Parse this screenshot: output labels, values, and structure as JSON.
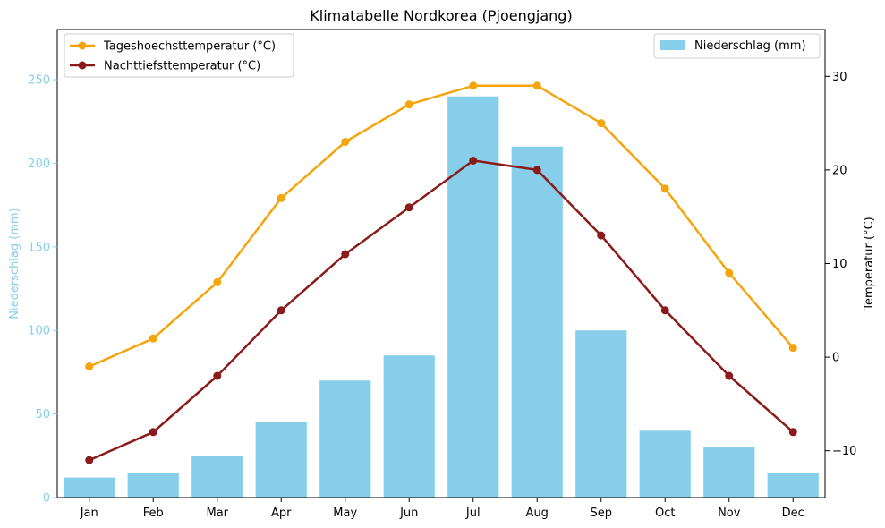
{
  "chart_data": {
    "type": "bar+line",
    "title": "Klimatabelle Nordkorea (Pjoengjang)",
    "categories": [
      "Jan",
      "Feb",
      "Mar",
      "Apr",
      "May",
      "Jun",
      "Jul",
      "Aug",
      "Sep",
      "Oct",
      "Nov",
      "Dec"
    ],
    "bar_series": {
      "name": "Niederschlag (mm)",
      "axis": "left",
      "color": "#87CEEB",
      "values": [
        12,
        15,
        25,
        45,
        70,
        85,
        240,
        210,
        100,
        40,
        30,
        15
      ]
    },
    "line_series": [
      {
        "name": "Tageshoechsttemperatur (°C)",
        "axis": "right",
        "color": "#F5A40C",
        "values": [
          -1,
          2,
          8,
          17,
          23,
          27,
          29,
          29,
          25,
          18,
          9,
          1
        ]
      },
      {
        "name": "Nachttiefsttemperatur (°C)",
        "axis": "right",
        "color": "#8B1A1A",
        "values": [
          -11,
          -8,
          -2,
          5,
          11,
          16,
          21,
          20,
          13,
          5,
          -2,
          -8
        ]
      }
    ],
    "left_axis": {
      "label": "Niederschlag (mm)",
      "color": "#87CEEB",
      "ylim": [
        0,
        280
      ],
      "ticks": [
        0,
        50,
        100,
        150,
        200,
        250
      ]
    },
    "right_axis": {
      "label": "Temperatur (°C)",
      "color": "#000000",
      "ylim": [
        -15,
        35
      ],
      "ticks": [
        -10,
        0,
        10,
        20,
        30
      ]
    },
    "grid": false,
    "legend_lines_position": "top-left",
    "legend_bars_position": "top-right"
  }
}
